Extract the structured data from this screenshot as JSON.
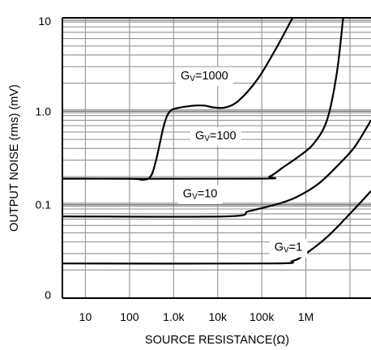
{
  "chart_data": {
    "type": "line",
    "title": "",
    "xlabel": "SOURCE RESISTANCE(Ω)",
    "ylabel": "OUTPUT NOISE (rms) (mV)",
    "xscale": "log",
    "yscale": "log",
    "xlim": [
      3,
      30000000
    ],
    "ylim": [
      0.01,
      10
    ],
    "grid": true,
    "x_ticks": [
      {
        "value": 10,
        "label": "10"
      },
      {
        "value": 100,
        "label": "100"
      },
      {
        "value": 1000,
        "label": "1.0k"
      },
      {
        "value": 10000,
        "label": "10k"
      },
      {
        "value": 100000,
        "label": "100k"
      },
      {
        "value": 1000000,
        "label": "1M"
      }
    ],
    "y_ticks": [
      {
        "value": 0.01,
        "label": "0"
      },
      {
        "value": 0.1,
        "label": "0.1"
      },
      {
        "value": 1,
        "label": "1.0"
      },
      {
        "value": 10,
        "label": "10"
      }
    ],
    "series": [
      {
        "name": "GV=1000",
        "label_main": "G",
        "label_sub": "V",
        "label_tail": "=1000",
        "label_pos": {
          "x": 5000,
          "y": 2.2
        },
        "points": [
          [
            3,
            0.19
          ],
          [
            100,
            0.19
          ],
          [
            200,
            0.185
          ],
          [
            300,
            0.2
          ],
          [
            400,
            0.3
          ],
          [
            600,
            0.7
          ],
          [
            800,
            0.98
          ],
          [
            1200,
            1.08
          ],
          [
            3000,
            1.15
          ],
          [
            5000,
            1.15
          ],
          [
            8000,
            1.1
          ],
          [
            15000,
            1.1
          ],
          [
            30000,
            1.3
          ],
          [
            80000,
            2.2
          ],
          [
            200000,
            4.5
          ],
          [
            500000,
            10
          ]
        ]
      },
      {
        "name": "GV=100",
        "label_main": "G",
        "label_sub": "V",
        "label_tail": "=100",
        "label_pos": {
          "x": 9000,
          "y": 0.5
        },
        "points": [
          [
            3,
            0.19
          ],
          [
            80000,
            0.19
          ],
          [
            150000,
            0.2
          ],
          [
            300000,
            0.25
          ],
          [
            700000,
            0.33
          ],
          [
            1500000,
            0.45
          ],
          [
            3000000,
            0.8
          ],
          [
            5000000,
            2.5
          ],
          [
            7000000,
            10
          ]
        ]
      },
      {
        "name": "GV=10",
        "label_main": "G",
        "label_sub": "V",
        "label_tail": "=10",
        "label_pos": {
          "x": 4000,
          "y": 0.12
        },
        "points": [
          [
            3,
            0.075
          ],
          [
            15000,
            0.075
          ],
          [
            50000,
            0.085
          ],
          [
            200000,
            0.1
          ],
          [
            600000,
            0.12
          ],
          [
            2000000,
            0.17
          ],
          [
            6000000,
            0.28
          ],
          [
            13000000,
            0.42
          ],
          [
            30000000,
            0.8
          ]
        ]
      },
      {
        "name": "GV=1",
        "label_main": "G",
        "label_sub": "V",
        "label_tail": "=1",
        "label_pos": {
          "x": 400000,
          "y": 0.032
        },
        "points": [
          [
            3,
            0.0235
          ],
          [
            150000,
            0.0235
          ],
          [
            500000,
            0.025
          ],
          [
            1000000,
            0.03
          ],
          [
            3000000,
            0.045
          ],
          [
            10000000,
            0.08
          ],
          [
            30000000,
            0.14
          ]
        ]
      }
    ]
  }
}
